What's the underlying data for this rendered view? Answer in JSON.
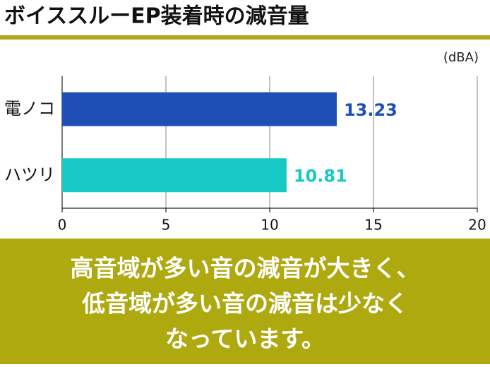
{
  "chart_data": {
    "type": "bar",
    "orientation": "horizontal",
    "title": "ボイススルーEP装着時の減音量",
    "unit_label": "(dBA)",
    "categories": [
      "電ノコ",
      "ハツリ"
    ],
    "values": [
      13.23,
      10.81
    ],
    "colors": [
      "#1d4fb6",
      "#16c9c5"
    ],
    "xlim": [
      0,
      20
    ],
    "xticks": [
      0,
      5,
      10,
      15,
      20
    ],
    "grid": true
  },
  "banner": {
    "lines": [
      "高音域が多い音の減音が大きく、",
      "低音域が多い音の減音は少なく",
      "なっています。"
    ]
  }
}
